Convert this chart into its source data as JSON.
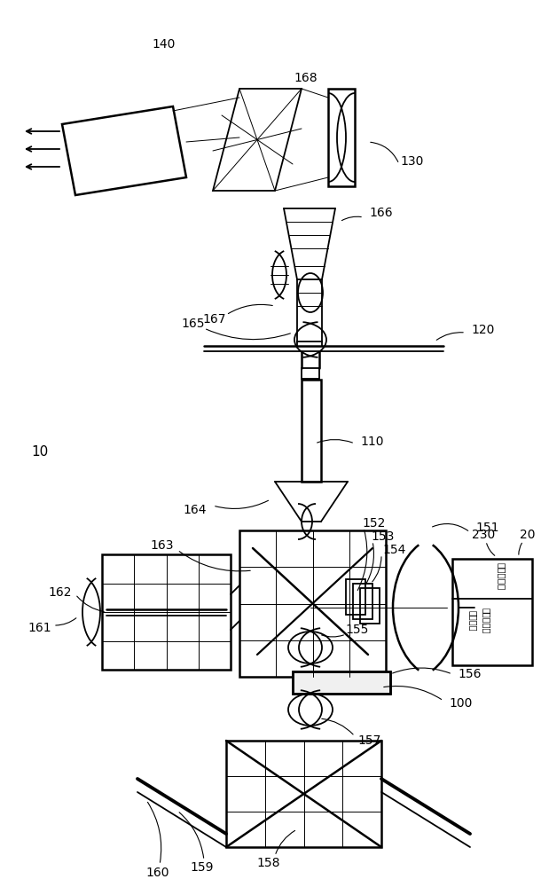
{
  "bg": "#ffffff",
  "lc": "#000000",
  "fw": 6.1,
  "fh": 10.0,
  "dpi": 100,
  "ch_230": "半导体光源",
  "ch_20a": "半导体光源",
  "ch_20b": "控制装置"
}
